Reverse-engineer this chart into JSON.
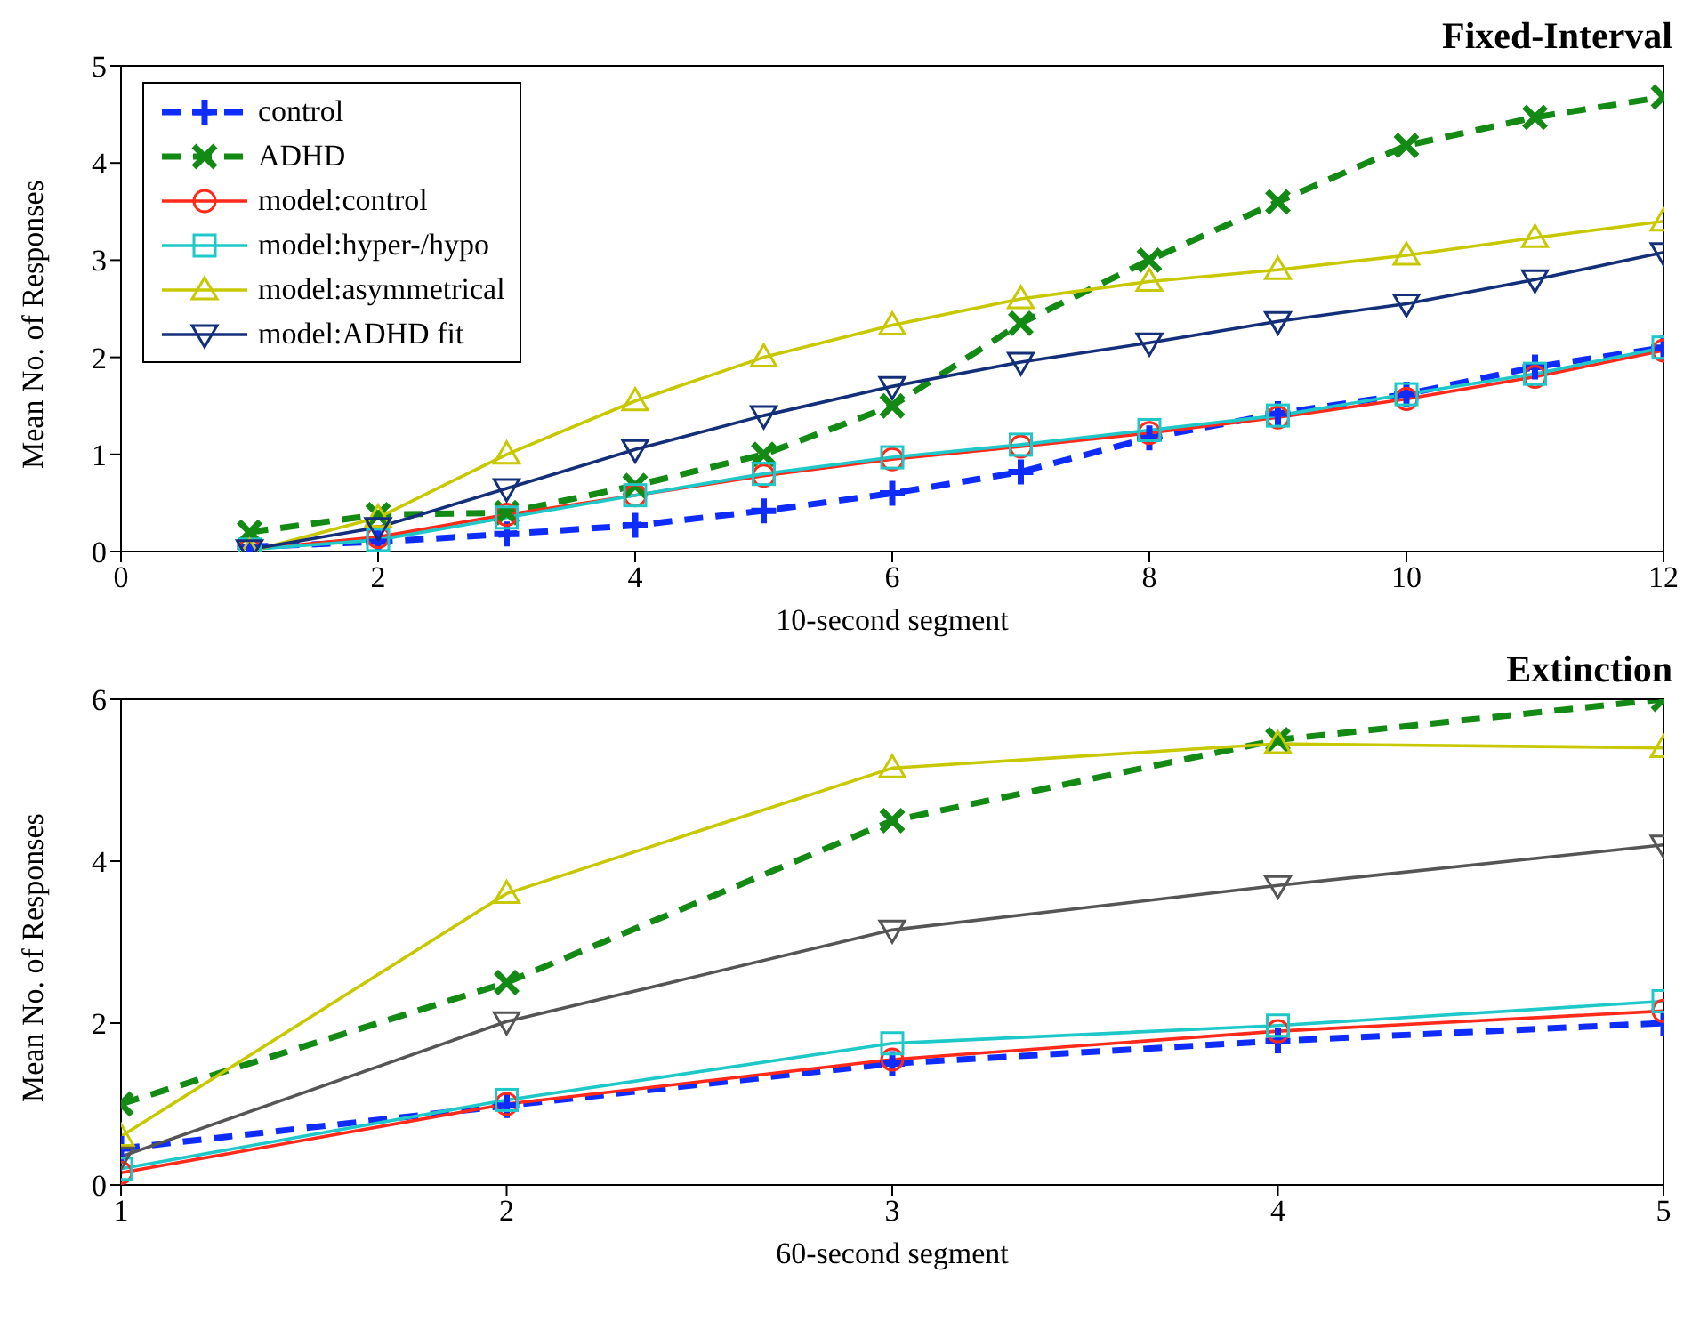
{
  "chart_data": [
    {
      "type": "line",
      "title": "Fixed-Interval",
      "xlabel": "10-second segment",
      "ylabel": "Mean No. of Responses",
      "x": [
        1,
        2,
        3,
        4,
        5,
        6,
        7,
        8,
        9,
        10,
        11,
        12
      ],
      "xlim": [
        0,
        12
      ],
      "xticks": [
        0,
        2,
        4,
        6,
        8,
        10,
        12
      ],
      "ylim": [
        0,
        5
      ],
      "yticks": [
        0,
        1,
        2,
        3,
        4,
        5
      ],
      "grid": false,
      "legend": "top left",
      "series": [
        {
          "name": "control",
          "color": "#0f2cff",
          "marker": "plus",
          "line_style": "dashed",
          "values": [
            0.05,
            0.1,
            0.18,
            0.27,
            0.42,
            0.6,
            0.82,
            1.17,
            1.42,
            1.62,
            1.9,
            2.1
          ]
        },
        {
          "name": "ADHD",
          "color": "#138a13",
          "marker": "cross",
          "line_style": "dashed",
          "values": [
            0.2,
            0.38,
            0.4,
            0.68,
            1.0,
            1.5,
            2.35,
            3.0,
            3.6,
            4.18,
            4.47,
            4.68
          ]
        },
        {
          "name": "model:control",
          "color": "#ff2a1a",
          "marker": "circle",
          "line_style": "solid",
          "values": [
            0.02,
            0.15,
            0.38,
            0.58,
            0.78,
            0.95,
            1.08,
            1.22,
            1.38,
            1.57,
            1.8,
            2.07
          ]
        },
        {
          "name": "model:hyper-/hypo",
          "color": "#1fc8c8",
          "marker": "square",
          "line_style": "solid",
          "values": [
            0.02,
            0.12,
            0.35,
            0.58,
            0.8,
            0.97,
            1.1,
            1.25,
            1.4,
            1.62,
            1.83,
            2.1
          ]
        },
        {
          "name": "model:asymmetrical",
          "color": "#c8c800",
          "marker": "triangle",
          "line_style": "solid",
          "values": [
            0,
            0.35,
            1.0,
            1.55,
            2.0,
            2.33,
            2.6,
            2.78,
            2.9,
            3.05,
            3.23,
            3.4
          ]
        },
        {
          "name": "model:ADHD fit",
          "color": "#132f7a",
          "marker": "triangle-down",
          "line_style": "solid",
          "values": [
            0.02,
            0.25,
            0.65,
            1.05,
            1.4,
            1.7,
            1.95,
            2.15,
            2.37,
            2.55,
            2.8,
            3.08
          ]
        }
      ]
    },
    {
      "type": "line",
      "title": "Extinction",
      "xlabel": "60-second segment",
      "ylabel": "Mean No. of Responses",
      "x": [
        1,
        2,
        3,
        4,
        5
      ],
      "xlim": [
        1,
        5
      ],
      "xticks": [
        1,
        2,
        3,
        4,
        5
      ],
      "ylim": [
        0,
        6
      ],
      "yticks": [
        0,
        2,
        4,
        6
      ],
      "grid": false,
      "series": [
        {
          "color": "#0f2cff",
          "marker": "plus",
          "line_style": "dashed",
          "values": [
            0.45,
            0.98,
            1.5,
            1.78,
            2.0
          ]
        },
        {
          "color": "#138a13",
          "marker": "cross",
          "line_style": "dashed",
          "values": [
            1.0,
            2.5,
            4.5,
            5.5,
            6.0
          ]
        },
        {
          "color": "#ff2a1a",
          "marker": "circle",
          "line_style": "solid",
          "values": [
            0.15,
            1.0,
            1.55,
            1.9,
            2.15
          ]
        },
        {
          "color": "#1fc8c8",
          "marker": "square",
          "line_style": "solid",
          "values": [
            0.2,
            1.05,
            1.75,
            1.97,
            2.27
          ]
        },
        {
          "color": "#c8c800",
          "marker": "triangle",
          "line_style": "solid",
          "values": [
            0.6,
            3.6,
            5.15,
            5.45,
            5.4
          ]
        },
        {
          "color": "#555555",
          "marker": "triangle-down",
          "line_style": "solid",
          "values": [
            0.35,
            2.02,
            3.15,
            3.7,
            4.2
          ]
        }
      ]
    }
  ]
}
